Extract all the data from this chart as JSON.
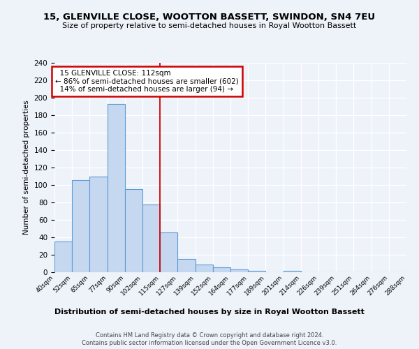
{
  "title": "15, GLENVILLE CLOSE, WOOTTON BASSETT, SWINDON, SN4 7EU",
  "subtitle": "Size of property relative to semi-detached houses in Royal Wootton Bassett",
  "xlabel": "Distribution of semi-detached houses by size in Royal Wootton Bassett",
  "ylabel": "Number of semi-detached properties",
  "footer1": "Contains HM Land Registry data © Crown copyright and database right 2024.",
  "footer2": "Contains public sector information licensed under the Open Government Licence v3.0.",
  "bin_labels": [
    "40sqm",
    "52sqm",
    "65sqm",
    "77sqm",
    "90sqm",
    "102sqm",
    "115sqm",
    "127sqm",
    "139sqm",
    "152sqm",
    "164sqm",
    "177sqm",
    "189sqm",
    "201sqm",
    "214sqm",
    "226sqm",
    "239sqm",
    "251sqm",
    "264sqm",
    "276sqm",
    "288sqm"
  ],
  "bar_values": [
    35,
    106,
    110,
    193,
    95,
    78,
    46,
    15,
    9,
    6,
    3,
    2,
    0,
    2,
    0,
    0,
    0,
    0,
    0,
    0
  ],
  "bar_color": "#c5d8f0",
  "bar_edge_color": "#5b9bd5",
  "property_line_label": "15 GLENVILLE CLOSE: 112sqm",
  "pct_smaller": 86,
  "n_smaller": 602,
  "pct_larger": 14,
  "n_larger": 94,
  "annotation_box_color": "#ffffff",
  "annotation_box_edge": "#cc0000",
  "line_color": "#cc0000",
  "ylim": [
    0,
    240
  ],
  "yticks": [
    0,
    20,
    40,
    60,
    80,
    100,
    120,
    140,
    160,
    180,
    200,
    220,
    240
  ],
  "background_color": "#eef2f9",
  "grid_color": "#ffffff",
  "title_fontsize": 9.5,
  "subtitle_fontsize": 8.0
}
